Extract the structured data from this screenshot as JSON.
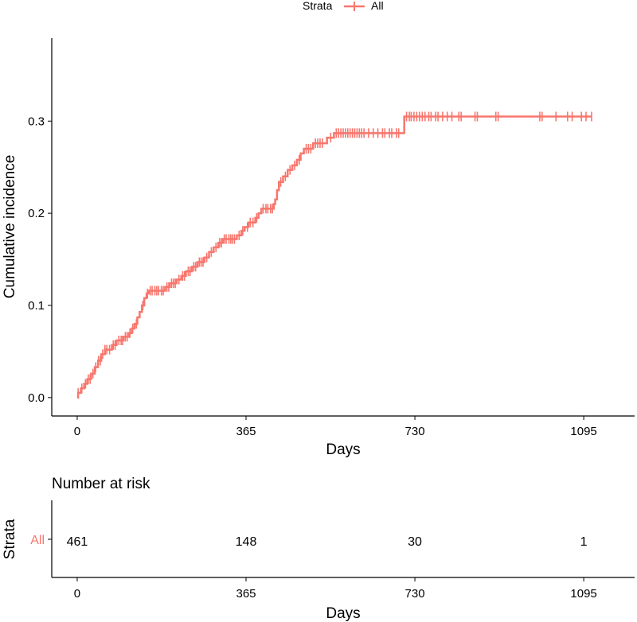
{
  "legend": {
    "title": "Strata",
    "entries": [
      {
        "label": "All",
        "color": "#F8766D"
      }
    ],
    "placement": "top"
  },
  "chart_data": [
    {
      "type": "line",
      "subtype": "cumulative-incidence-step",
      "ylabel": "Cumulative incidence",
      "xlabel": "Days",
      "xlim": [
        -55,
        1205
      ],
      "ylim": [
        -0.02,
        0.39
      ],
      "x_ticks": [
        0,
        365,
        730,
        1095
      ],
      "x_tick_labels": [
        "0",
        "365",
        "730",
        "1095"
      ],
      "y_ticks": [
        0.0,
        0.1,
        0.2,
        0.3
      ],
      "y_tick_labels": [
        "0.0",
        "0.1",
        "0.2",
        "0.3"
      ],
      "grid": false,
      "series": [
        {
          "name": "All",
          "color": "#F8766D",
          "step_points": [
            [
              0,
              0.0
            ],
            [
              2,
              0.005
            ],
            [
              8,
              0.01
            ],
            [
              15,
              0.015
            ],
            [
              22,
              0.02
            ],
            [
              30,
              0.026
            ],
            [
              38,
              0.033
            ],
            [
              45,
              0.04
            ],
            [
              52,
              0.047
            ],
            [
              60,
              0.052
            ],
            [
              75,
              0.057
            ],
            [
              85,
              0.062
            ],
            [
              100,
              0.066
            ],
            [
              112,
              0.07
            ],
            [
              118,
              0.075
            ],
            [
              124,
              0.08
            ],
            [
              130,
              0.087
            ],
            [
              135,
              0.093
            ],
            [
              140,
              0.1
            ],
            [
              145,
              0.108
            ],
            [
              150,
              0.113
            ],
            [
              155,
              0.116
            ],
            [
              190,
              0.12
            ],
            [
              200,
              0.124
            ],
            [
              215,
              0.128
            ],
            [
              225,
              0.132
            ],
            [
              235,
              0.137
            ],
            [
              248,
              0.142
            ],
            [
              260,
              0.147
            ],
            [
              275,
              0.152
            ],
            [
              285,
              0.158
            ],
            [
              295,
              0.163
            ],
            [
              305,
              0.168
            ],
            [
              315,
              0.172
            ],
            [
              345,
              0.176
            ],
            [
              355,
              0.181
            ],
            [
              362,
              0.185
            ],
            [
              370,
              0.19
            ],
            [
              385,
              0.195
            ],
            [
              392,
              0.2
            ],
            [
              398,
              0.205
            ],
            [
              425,
              0.21
            ],
            [
              428,
              0.215
            ],
            [
              432,
              0.225
            ],
            [
              436,
              0.234
            ],
            [
              445,
              0.24
            ],
            [
              455,
              0.247
            ],
            [
              465,
              0.252
            ],
            [
              475,
              0.258
            ],
            [
              483,
              0.265
            ],
            [
              490,
              0.27
            ],
            [
              510,
              0.276
            ],
            [
              540,
              0.282
            ],
            [
              555,
              0.287
            ],
            [
              707,
              0.305
            ],
            [
              1095,
              0.305
            ]
          ],
          "censor_marks_x": [
            2,
            10,
            18,
            24,
            28,
            34,
            40,
            46,
            50,
            55,
            60,
            64,
            70,
            78,
            82,
            90,
            95,
            98,
            104,
            108,
            114,
            120,
            128,
            142,
            152,
            158,
            162,
            168,
            172,
            176,
            182,
            186,
            194,
            198,
            204,
            208,
            212,
            220,
            228,
            232,
            240,
            244,
            252,
            256,
            264,
            268,
            272,
            280,
            290,
            300,
            308,
            312,
            318,
            322,
            328,
            332,
            336,
            340,
            350,
            358,
            368,
            374,
            380,
            388,
            402,
            408,
            412,
            418,
            422,
            440,
            450,
            460,
            470,
            480,
            495,
            500,
            505,
            515,
            520,
            525,
            530,
            548,
            560,
            565,
            570,
            575,
            580,
            585,
            590,
            595,
            600,
            605,
            610,
            615,
            620,
            630,
            640,
            650,
            660,
            665,
            675,
            680,
            690,
            695,
            712,
            718,
            722,
            728,
            734,
            740,
            746,
            752,
            760,
            765,
            775,
            780,
            790,
            800,
            810,
            825,
            830,
            860,
            865,
            905,
            910,
            1000,
            1005,
            1035,
            1060,
            1070,
            1090,
            1100,
            1112
          ]
        }
      ]
    },
    {
      "type": "table",
      "title": "Number at risk",
      "ylabel": "Strata",
      "xlabel": "Days",
      "xlim": [
        -55,
        1205
      ],
      "x_ticks": [
        0,
        365,
        730,
        1095
      ],
      "x_tick_labels": [
        "0",
        "365",
        "730",
        "1095"
      ],
      "rows": [
        {
          "stratum": "All",
          "color": "#F8766D",
          "times": [
            0,
            365,
            730,
            1095
          ],
          "counts": [
            "461",
            "148",
            "30",
            "1"
          ]
        }
      ]
    }
  ]
}
